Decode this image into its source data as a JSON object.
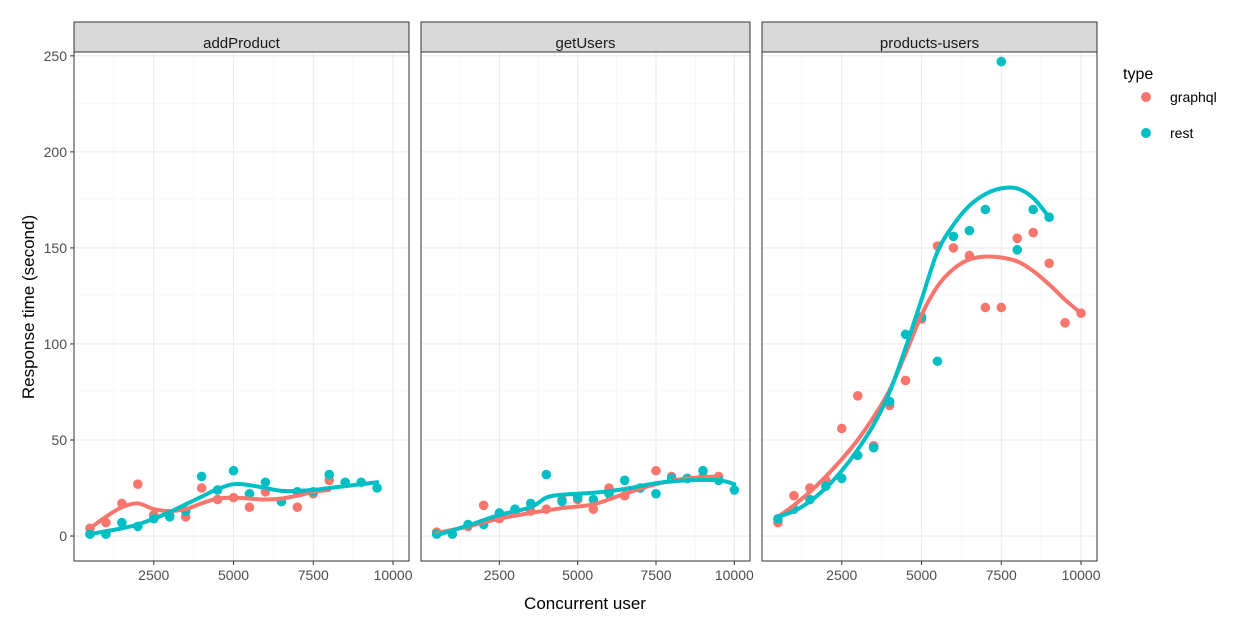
{
  "chart_data": {
    "type": "scatter",
    "xlabel": "Concurrent user",
    "ylabel": "Response time (second)",
    "xlim": [
      0,
      10500
    ],
    "ylim": [
      -13,
      252
    ],
    "x_ticks": [
      2500,
      5000,
      7500,
      10000
    ],
    "y_ticks": [
      0,
      50,
      100,
      150,
      200,
      250
    ],
    "grid": true,
    "legend": {
      "title": "type",
      "placement": "right"
    },
    "series": [
      {
        "name": "graphql",
        "color": "#F8766D"
      },
      {
        "name": "rest",
        "color": "#00BFC4"
      }
    ],
    "panels": [
      {
        "label": "addProduct",
        "points": {
          "graphql": [
            [
              500,
              4
            ],
            [
              1000,
              7
            ],
            [
              1500,
              17
            ],
            [
              2000,
              27
            ],
            [
              2500,
              11
            ],
            [
              3000,
              11
            ],
            [
              3500,
              10
            ],
            [
              4000,
              25
            ],
            [
              4500,
              19
            ],
            [
              5000,
              20
            ],
            [
              5500,
              15
            ],
            [
              6000,
              23
            ],
            [
              6500,
              18
            ],
            [
              7000,
              15
            ],
            [
              7500,
              22
            ],
            [
              8000,
              29
            ]
          ],
          "rest": [
            [
              500,
              1
            ],
            [
              1000,
              1
            ],
            [
              1500,
              7
            ],
            [
              2000,
              5
            ],
            [
              2500,
              9
            ],
            [
              3000,
              10
            ],
            [
              3500,
              13
            ],
            [
              4000,
              31
            ],
            [
              4500,
              24
            ],
            [
              5000,
              34
            ],
            [
              5500,
              22
            ],
            [
              6000,
              28
            ],
            [
              6500,
              18
            ],
            [
              7000,
              23
            ],
            [
              7500,
              23
            ],
            [
              8000,
              32
            ],
            [
              8500,
              28
            ],
            [
              9000,
              28
            ],
            [
              9500,
              25
            ]
          ]
        },
        "smooth": {
          "graphql": [
            [
              500,
              4
            ],
            [
              1000,
              10
            ],
            [
              1500,
              15
            ],
            [
              2000,
              17
            ],
            [
              2500,
              14
            ],
            [
              3000,
              13
            ],
            [
              3500,
              14
            ],
            [
              4000,
              17
            ],
            [
              4500,
              19.5
            ],
            [
              5000,
              20
            ],
            [
              5500,
              19.5
            ],
            [
              6000,
              19
            ],
            [
              6500,
              19.5
            ],
            [
              7000,
              21
            ],
            [
              7500,
              23
            ],
            [
              8000,
              24
            ]
          ],
          "rest": [
            [
              500,
              1
            ],
            [
              1000,
              2.5
            ],
            [
              1500,
              4
            ],
            [
              2000,
              6
            ],
            [
              2500,
              9
            ],
            [
              3000,
              12.5
            ],
            [
              3500,
              16.5
            ],
            [
              4000,
              20.5
            ],
            [
              4500,
              24.5
            ],
            [
              5000,
              27
            ],
            [
              5500,
              26.5
            ],
            [
              6000,
              25
            ],
            [
              6500,
              23.5
            ],
            [
              7000,
              23.5
            ],
            [
              7500,
              24
            ],
            [
              8000,
              25
            ],
            [
              8500,
              26
            ],
            [
              9000,
              27
            ],
            [
              9500,
              28
            ]
          ]
        }
      },
      {
        "label": "getUsers",
        "points": {
          "graphql": [
            [
              500,
              2
            ],
            [
              1500,
              5
            ],
            [
              2000,
              16
            ],
            [
              2500,
              9
            ],
            [
              3000,
              12
            ],
            [
              3500,
              13
            ],
            [
              4000,
              14
            ],
            [
              4500,
              19
            ],
            [
              5000,
              19
            ],
            [
              5500,
              14
            ],
            [
              6000,
              25
            ],
            [
              6500,
              21
            ],
            [
              7000,
              25
            ],
            [
              7500,
              34
            ],
            [
              8000,
              31
            ],
            [
              8500,
              30
            ],
            [
              9000,
              31
            ],
            [
              9500,
              31
            ]
          ],
          "rest": [
            [
              500,
              1
            ],
            [
              1000,
              1
            ],
            [
              1500,
              6
            ],
            [
              2000,
              6
            ],
            [
              2500,
              12
            ],
            [
              3000,
              14
            ],
            [
              3500,
              17
            ],
            [
              4000,
              32
            ],
            [
              4500,
              18
            ],
            [
              5000,
              20
            ],
            [
              5500,
              19
            ],
            [
              6000,
              22
            ],
            [
              6500,
              29
            ],
            [
              7000,
              25
            ],
            [
              7500,
              22
            ],
            [
              8000,
              30
            ],
            [
              8500,
              30
            ],
            [
              9000,
              34
            ],
            [
              9500,
              29
            ],
            [
              10000,
              24
            ]
          ]
        },
        "smooth": {
          "graphql": [
            [
              500,
              1.5
            ],
            [
              1500,
              5
            ],
            [
              2500,
              9
            ],
            [
              3500,
              12
            ],
            [
              4500,
              14.5
            ],
            [
              5500,
              16.5
            ],
            [
              6500,
              22
            ],
            [
              7500,
              27
            ],
            [
              8500,
              30
            ],
            [
              9500,
              31
            ]
          ],
          "rest": [
            [
              500,
              0.5
            ],
            [
              1500,
              5.5
            ],
            [
              2500,
              11
            ],
            [
              3500,
              15
            ],
            [
              4000,
              20
            ],
            [
              4500,
              21.5
            ],
            [
              5500,
              22.5
            ],
            [
              6500,
              24.5
            ],
            [
              7500,
              27.5
            ],
            [
              8500,
              29
            ],
            [
              9500,
              29
            ],
            [
              10000,
              27
            ]
          ]
        }
      },
      {
        "label": "products-users",
        "points": {
          "graphql": [
            [
              500,
              7
            ],
            [
              1000,
              21
            ],
            [
              1500,
              25
            ],
            [
              2000,
              29
            ],
            [
              2500,
              56
            ],
            [
              3000,
              73
            ],
            [
              3500,
              47
            ],
            [
              4000,
              68
            ],
            [
              4500,
              81
            ],
            [
              5000,
              113
            ],
            [
              5500,
              151
            ],
            [
              6000,
              150
            ],
            [
              6500,
              146
            ],
            [
              7000,
              119
            ],
            [
              7500,
              119
            ],
            [
              8000,
              155
            ],
            [
              8500,
              158
            ],
            [
              9000,
              142
            ],
            [
              9500,
              111
            ],
            [
              10000,
              116
            ]
          ],
          "rest": [
            [
              500,
              9
            ],
            [
              1000,
              14
            ],
            [
              1500,
              19
            ],
            [
              2000,
              26
            ],
            [
              2500,
              30
            ],
            [
              3000,
              42
            ],
            [
              3500,
              46
            ],
            [
              4000,
              70
            ],
            [
              4500,
              105
            ],
            [
              5000,
              114
            ],
            [
              5500,
              91
            ],
            [
              6000,
              156
            ],
            [
              6500,
              159
            ],
            [
              7000,
              170
            ],
            [
              7500,
              247
            ],
            [
              8000,
              149
            ],
            [
              8500,
              170
            ],
            [
              9000,
              166
            ]
          ]
        },
        "smooth": {
          "graphql": [
            [
              500,
              10
            ],
            [
              1000,
              16
            ],
            [
              1500,
              23
            ],
            [
              2000,
              31
            ],
            [
              2500,
              40
            ],
            [
              3000,
              50
            ],
            [
              3500,
              62
            ],
            [
              4000,
              76
            ],
            [
              4500,
              95
            ],
            [
              5000,
              115
            ],
            [
              5500,
              130
            ],
            [
              6000,
              139
            ],
            [
              6500,
              144
            ],
            [
              7000,
              145.5
            ],
            [
              7500,
              145
            ],
            [
              8000,
              143
            ],
            [
              8500,
              138
            ],
            [
              9000,
              131
            ],
            [
              9500,
              123
            ],
            [
              10000,
              116
            ]
          ],
          "rest": [
            [
              500,
              10
            ],
            [
              1000,
              13
            ],
            [
              1500,
              18
            ],
            [
              2000,
              25
            ],
            [
              2500,
              34
            ],
            [
              3000,
              45
            ],
            [
              3500,
              58
            ],
            [
              4000,
              75
            ],
            [
              4500,
              98
            ],
            [
              5000,
              123
            ],
            [
              5500,
              148
            ],
            [
              6000,
              162
            ],
            [
              6500,
              172
            ],
            [
              7000,
              178
            ],
            [
              7500,
              181
            ],
            [
              8000,
              181
            ],
            [
              8500,
              176
            ],
            [
              9000,
              166
            ]
          ]
        }
      }
    ]
  }
}
